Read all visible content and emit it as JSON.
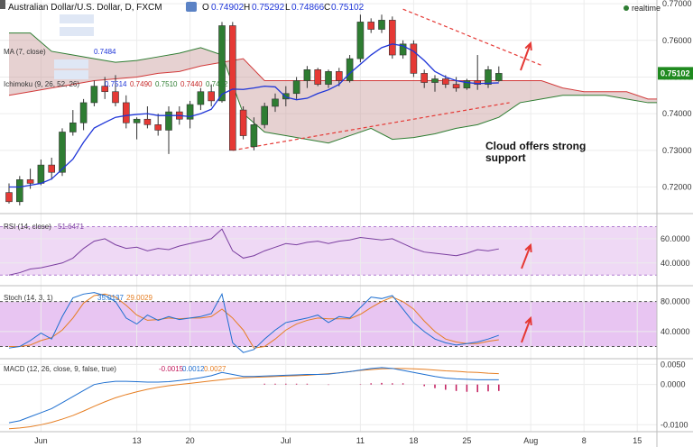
{
  "header": {
    "title": "Australian Dollar/U.S. Dollar, D, FXCM",
    "ohlc": {
      "o_label": "O",
      "o": "0.74902",
      "h_label": "H",
      "h": "0.75292",
      "l_label": "L",
      "l": "0.74866",
      "c_label": "C",
      "c": "0.75102"
    },
    "realtime": "realtime"
  },
  "legends": {
    "ma": "MA (7, close)",
    "ma_value": "0.7484",
    "ichimoku": "Ichimoku (9, 26, 52, 26)",
    "ichimoku_values": [
      "0.7514",
      "0.7490",
      "0.7510",
      "0.7440",
      "0.7432"
    ],
    "rsi": "RSI (14, close)",
    "rsi_value": "51.6471",
    "stoch": "Stoch (14, 3, 1)",
    "stoch_values": [
      "35.0137",
      "29.0029"
    ],
    "macd": "MACD (12, 26, close, 9, false, true)",
    "macd_values": [
      "-0.0015",
      "0.0012",
      "0.0027"
    ]
  },
  "annotation": "Cloud offers strong support",
  "price_badge": "0.75102",
  "colors": {
    "bull": "#2e7d32",
    "bear": "#e53935",
    "ma": "#1e35d8",
    "cloud": "#c89a9a",
    "price_badge": "#1f8a1f",
    "rsi_band": "#efd9f5",
    "stoch_band": "#e8c5f2"
  },
  "chart_data": {
    "type": "candlestick",
    "x_ticks": [
      {
        "label": "Jun",
        "i": 3
      },
      {
        "label": "13",
        "i": 12
      },
      {
        "label": "20",
        "i": 17
      },
      {
        "label": "Jul",
        "i": 26
      },
      {
        "label": "11",
        "i": 33
      },
      {
        "label": "18",
        "i": 38
      },
      {
        "label": "25",
        "i": 43
      },
      {
        "label": "Aug",
        "i": 49
      },
      {
        "label": "8",
        "i": 54
      },
      {
        "label": "15",
        "i": 59
      }
    ],
    "price_axis": {
      "ticks": [
        "0.72000",
        "0.73000",
        "0.74000",
        "0.75000",
        "0.76000",
        "0.77000"
      ],
      "ylim": [
        0.713,
        0.771
      ]
    },
    "candles": [
      [
        0.7185,
        0.721,
        0.7155,
        0.716
      ],
      [
        0.716,
        0.723,
        0.715,
        0.722
      ],
      [
        0.722,
        0.725,
        0.7195,
        0.721
      ],
      [
        0.721,
        0.7275,
        0.7205,
        0.726
      ],
      [
        0.726,
        0.728,
        0.722,
        0.724
      ],
      [
        0.724,
        0.736,
        0.723,
        0.735
      ],
      [
        0.735,
        0.741,
        0.734,
        0.7375
      ],
      [
        0.7375,
        0.744,
        0.7355,
        0.743
      ],
      [
        0.743,
        0.749,
        0.742,
        0.7475
      ],
      [
        0.7475,
        0.75,
        0.744,
        0.746
      ],
      [
        0.746,
        0.7505,
        0.742,
        0.743
      ],
      [
        0.743,
        0.745,
        0.736,
        0.7375
      ],
      [
        0.7375,
        0.739,
        0.733,
        0.7385
      ],
      [
        0.7385,
        0.742,
        0.736,
        0.737
      ],
      [
        0.737,
        0.74,
        0.734,
        0.7355
      ],
      [
        0.7355,
        0.742,
        0.729,
        0.7405
      ],
      [
        0.7405,
        0.742,
        0.737,
        0.7385
      ],
      [
        0.7385,
        0.7435,
        0.736,
        0.7425
      ],
      [
        0.7425,
        0.747,
        0.741,
        0.746
      ],
      [
        0.746,
        0.748,
        0.742,
        0.7435
      ],
      [
        0.7435,
        0.765,
        0.743,
        0.764
      ],
      [
        0.764,
        0.765,
        0.73,
        0.73
      ],
      [
        0.741,
        0.742,
        0.733,
        0.734
      ],
      [
        0.731,
        0.739,
        0.73,
        0.737
      ],
      [
        0.737,
        0.743,
        0.736,
        0.742
      ],
      [
        0.742,
        0.7455,
        0.7405,
        0.744
      ],
      [
        0.744,
        0.7475,
        0.742,
        0.7455
      ],
      [
        0.7455,
        0.75,
        0.744,
        0.749
      ],
      [
        0.749,
        0.753,
        0.747,
        0.752
      ],
      [
        0.752,
        0.7525,
        0.7475,
        0.748
      ],
      [
        0.748,
        0.752,
        0.747,
        0.7515
      ],
      [
        0.7515,
        0.7525,
        0.7475,
        0.749
      ],
      [
        0.749,
        0.756,
        0.7485,
        0.755
      ],
      [
        0.755,
        0.767,
        0.754,
        0.765
      ],
      [
        0.765,
        0.766,
        0.762,
        0.763
      ],
      [
        0.763,
        0.767,
        0.762,
        0.7655
      ],
      [
        0.7655,
        0.7665,
        0.755,
        0.756
      ],
      [
        0.756,
        0.76,
        0.755,
        0.759
      ],
      [
        0.759,
        0.76,
        0.75,
        0.751
      ],
      [
        0.751,
        0.752,
        0.747,
        0.7485
      ],
      [
        0.7485,
        0.7505,
        0.746,
        0.7495
      ],
      [
        0.7495,
        0.7505,
        0.747,
        0.748
      ],
      [
        0.748,
        0.75,
        0.746,
        0.747
      ],
      [
        0.747,
        0.7495,
        0.7465,
        0.749
      ],
      [
        0.749,
        0.756,
        0.7465,
        0.748
      ],
      [
        0.748,
        0.753,
        0.747,
        0.752
      ],
      [
        0.749,
        0.7529,
        0.7487,
        0.751
      ]
    ],
    "ma7": [
      0.72,
      0.72,
      0.7205,
      0.721,
      0.7222,
      0.7249,
      0.7276,
      0.7322,
      0.7361,
      0.7376,
      0.739,
      0.7395,
      0.7398,
      0.74,
      0.7395,
      0.7395,
      0.7395,
      0.7392,
      0.74,
      0.7412,
      0.7453,
      0.7467,
      0.7466,
      0.747,
      0.7475,
      0.7473,
      0.7445,
      0.7438,
      0.7442,
      0.7455,
      0.7465,
      0.748,
      0.751,
      0.7535,
      0.756,
      0.758,
      0.759,
      0.7585,
      0.757,
      0.7545,
      0.7515,
      0.75,
      0.749,
      0.7485,
      0.7482,
      0.7483,
      0.7484
    ],
    "cloud": {
      "x": [
        0,
        2,
        4,
        6,
        8,
        10,
        12,
        14,
        16,
        18,
        20,
        22,
        24,
        26,
        28,
        30,
        32,
        34,
        36,
        38,
        40,
        42,
        44,
        46,
        48,
        50,
        52,
        54,
        56,
        58,
        60,
        62
      ],
      "span_a": [
        0.745,
        0.746,
        0.747,
        0.748,
        0.749,
        0.7495,
        0.75,
        0.751,
        0.7515,
        0.753,
        0.754,
        0.755,
        0.749,
        0.749,
        0.749,
        0.749,
        0.749,
        0.749,
        0.749,
        0.749,
        0.749,
        0.749,
        0.749,
        0.749,
        0.749,
        0.749,
        0.747,
        0.746,
        0.746,
        0.746,
        0.744,
        0.744
      ],
      "span_b": [
        0.762,
        0.762,
        0.757,
        0.756,
        0.755,
        0.754,
        0.7545,
        0.7555,
        0.7565,
        0.758,
        0.756,
        0.74,
        0.735,
        0.734,
        0.733,
        0.732,
        0.734,
        0.736,
        0.733,
        0.7335,
        0.7345,
        0.736,
        0.737,
        0.739,
        0.743,
        0.744,
        0.745,
        0.745,
        0.745,
        0.744,
        0.743,
        0.743
      ]
    },
    "trendlines": [
      {
        "style": "dashed",
        "from": [
          21,
          0.73
        ],
        "to": [
          47,
          0.743
        ]
      },
      {
        "style": "dashed",
        "from": [
          37,
          0.7685
        ],
        "to": [
          50,
          0.7532
        ]
      }
    ],
    "rsi": {
      "axis_ticks": [
        "40.0000",
        "60.0000"
      ],
      "band": [
        30,
        70
      ],
      "ylim": [
        22,
        80
      ],
      "values": [
        30,
        32,
        35,
        36,
        38,
        40,
        44,
        52,
        58,
        60,
        55,
        52,
        53,
        50,
        52,
        51,
        54,
        56,
        58,
        60,
        68,
        50,
        44,
        46,
        50,
        53,
        56,
        55,
        57,
        58,
        56,
        58,
        59,
        61,
        60,
        59,
        60,
        56,
        52,
        49,
        48,
        47,
        46,
        48,
        51,
        50,
        51.6
      ]
    },
    "stoch": {
      "axis_ticks": [
        "40.0000",
        "80.0000"
      ],
      "band": [
        20,
        80
      ],
      "ylim": [
        5,
        100
      ],
      "k": [
        18,
        20,
        28,
        38,
        30,
        60,
        85,
        90,
        92,
        88,
        80,
        58,
        50,
        62,
        55,
        60,
        56,
        58,
        60,
        64,
        90,
        25,
        12,
        16,
        30,
        42,
        52,
        55,
        58,
        62,
        52,
        60,
        58,
        72,
        86,
        84,
        88,
        70,
        52,
        40,
        30,
        25,
        22,
        24,
        26,
        30,
        35
      ],
      "d": [
        20,
        20,
        22,
        28,
        32,
        42,
        58,
        78,
        88,
        90,
        86,
        75,
        62,
        55,
        56,
        58,
        57,
        58,
        58,
        60,
        70,
        58,
        42,
        18,
        20,
        30,
        42,
        50,
        55,
        58,
        57,
        57,
        57,
        63,
        72,
        80,
        86,
        80,
        70,
        54,
        40,
        30,
        26,
        24,
        24,
        27,
        29
      ]
    },
    "macd": {
      "axis_ticks": [
        "-0.0100",
        "0.0000",
        "0.0050"
      ],
      "ylim": [
        -0.0115,
        0.0062
      ],
      "macd": [
        -0.0095,
        -0.009,
        -0.008,
        -0.007,
        -0.006,
        -0.0045,
        -0.003,
        -0.0015,
        0.0,
        0.0005,
        0.0008,
        0.0008,
        0.0007,
        0.0006,
        0.0006,
        0.0007,
        0.001,
        0.0013,
        0.0017,
        0.0022,
        0.003,
        0.0025,
        0.002,
        0.002,
        0.0021,
        0.0022,
        0.0023,
        0.0024,
        0.0025,
        0.0025,
        0.0026,
        0.0029,
        0.0032,
        0.0036,
        0.004,
        0.0042,
        0.004,
        0.0035,
        0.003,
        0.0025,
        0.002,
        0.0016,
        0.0014,
        0.0013,
        0.0012,
        0.0012,
        0.0012
      ],
      "signal": [
        -0.011,
        -0.0108,
        -0.0105,
        -0.01,
        -0.0094,
        -0.0086,
        -0.0077,
        -0.0066,
        -0.0054,
        -0.0043,
        -0.0033,
        -0.0025,
        -0.0018,
        -0.0012,
        -0.0007,
        -0.0003,
        0.0,
        0.0003,
        0.0006,
        0.0009,
        0.0012,
        0.0015,
        0.0017,
        0.0018,
        0.0019,
        0.002,
        0.0021,
        0.0022,
        0.0023,
        0.0025,
        0.0027,
        0.0029,
        0.0032,
        0.0035,
        0.0037,
        0.0039,
        0.004,
        0.004,
        0.0039,
        0.0038,
        0.0036,
        0.0034,
        0.0033,
        0.0031,
        0.003,
        0.0028,
        0.0027
      ],
      "hist_from": 24,
      "hist": [
        0.0002,
        0.0002,
        0.0002,
        0.0002,
        0.0002,
        0.0,
        -0.0001,
        0.0,
        0.0,
        0.0001,
        0.0003,
        0.0004,
        0.0003,
        0.0003,
        0.0,
        -0.0004,
        -0.0009,
        -0.0013,
        -0.0016,
        -0.0018,
        -0.0019,
        -0.0017,
        -0.0016
      ]
    }
  }
}
